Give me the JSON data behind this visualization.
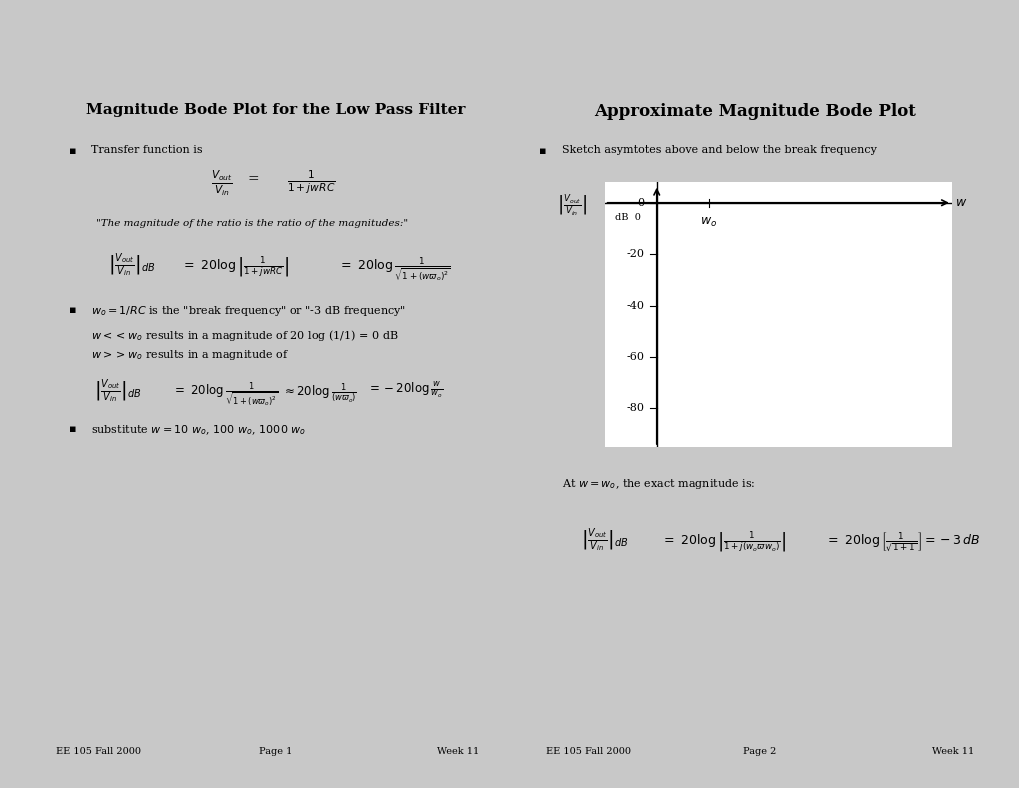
{
  "background_color": "#f0f0f0",
  "panel_bg": "#ffffff",
  "panel_border": "#888888",
  "page_bg": "#d0d0d0",
  "left_title": "Magnitude Bode Plot for the Low Pass Filter",
  "right_title": "Approximate Magnitude Bode Plot",
  "footer_left": "EE 105 Fall 2000",
  "footer_page1": "Page 1",
  "footer_week1": "Week 11",
  "footer_page2": "Page 2",
  "footer_week2": "Week 11"
}
